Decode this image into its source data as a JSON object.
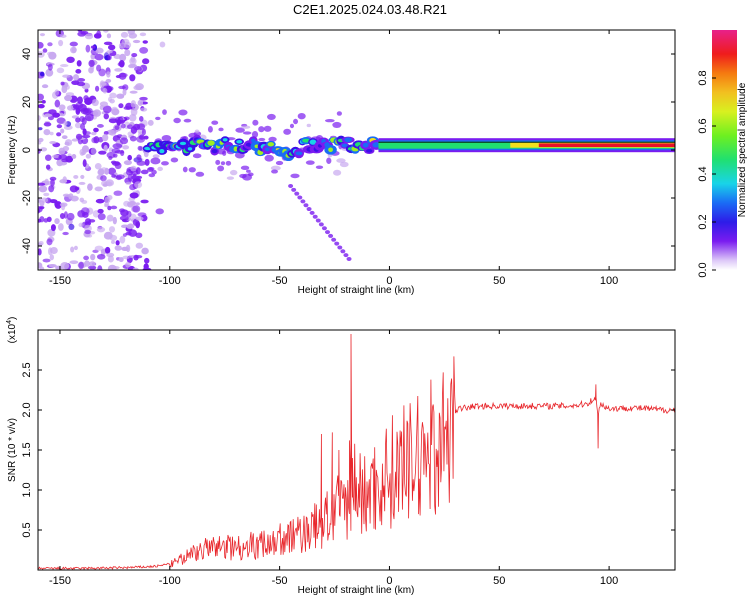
{
  "title": "C2E1.2025.024.03.48.R21",
  "colors": {
    "snr_line": "#e8262b",
    "ridge_core": "#e8102a",
    "colormap": [
      "#ffffff",
      "#c8a8f0",
      "#7a1cf0",
      "#3a10e8",
      "#1a6cf5",
      "#19d4e8",
      "#20e070",
      "#9ef020",
      "#f2e020",
      "#f58a10",
      "#ef1c1c",
      "#e8208a"
    ]
  },
  "chart_data": [
    {
      "type": "heatmap",
      "xlabel": "Height of straight line (km)",
      "ylabel": "Frequency (Hz)",
      "xlim": [
        -160,
        130
      ],
      "ylim": [
        -50,
        50
      ],
      "xticks": [
        -150,
        -100,
        -50,
        0,
        50,
        100
      ],
      "yticks": [
        -40,
        -20,
        0,
        20,
        40
      ],
      "colorbar": {
        "label": "Normalized spectral amplitude",
        "range": [
          0,
          1
        ],
        "ticks": [
          "0.0",
          "0.2",
          "0.4",
          "0.6",
          "0.8"
        ]
      },
      "features": {
        "noise_region_x": [
          -160,
          -110
        ],
        "ridge_frequency_hz": 2,
        "ridge_start_x": -110,
        "strong_ridge_from_x": -5
      },
      "grid": false
    },
    {
      "type": "line",
      "xlabel": "Height of straight line (km)",
      "ylabel": "SNR (10 * v/v)",
      "y_multiplier_label": "(x10",
      "y_multiplier_exp": "4",
      "y_multiplier_close": ")",
      "xlim": [
        -160,
        130
      ],
      "ylim": [
        0,
        3
      ],
      "xticks": [
        -150,
        -100,
        -50,
        0,
        50,
        100
      ],
      "yticks": [
        "0.5",
        "1.0",
        "1.5",
        "2.0",
        "2.5"
      ],
      "series": [
        {
          "x": [
            -160,
            -140,
            -120,
            -110,
            -105,
            -100,
            -95,
            -90,
            -85,
            -80,
            -75,
            -70,
            -65,
            -60,
            -55,
            -50,
            -45,
            -40,
            -35,
            -30,
            -27,
            -25,
            -22,
            -20,
            -18,
            -16,
            -15,
            -12,
            -10,
            -8,
            -5,
            -2,
            0,
            3,
            5,
            8,
            10,
            13,
            15,
            18,
            20,
            22,
            25,
            28,
            30,
            35,
            40,
            45,
            50,
            55,
            60,
            65,
            70,
            75,
            80,
            85,
            90,
            92,
            94,
            95,
            96,
            98,
            100,
            105,
            110,
            115,
            120,
            125,
            130
          ],
          "y": [
            0.02,
            0.02,
            0.03,
            0.04,
            0.05,
            0.08,
            0.15,
            0.25,
            0.3,
            0.32,
            0.35,
            0.33,
            0.38,
            0.35,
            0.42,
            0.45,
            0.48,
            0.55,
            0.6,
            0.72,
            0.8,
            0.85,
            0.9,
            1.0,
            1.1,
            1.3,
            1.2,
            1.05,
            1.15,
            1.2,
            1.25,
            1.35,
            1.45,
            1.45,
            1.5,
            1.55,
            1.6,
            1.62,
            1.72,
            1.75,
            1.82,
            1.88,
            1.92,
            1.96,
            2.0,
            2.03,
            2.05,
            2.05,
            2.05,
            2.05,
            2.05,
            2.05,
            2.05,
            2.05,
            2.05,
            2.06,
            2.08,
            2.12,
            2.15,
            1.9,
            2.1,
            2.04,
            2.02,
            2.02,
            2.03,
            2.02,
            2.01,
            2.0,
            2.0
          ]
        }
      ],
      "spikes": [
        {
          "x": -17.5,
          "y": 2.95
        },
        {
          "x": -18.2,
          "y": 1.62
        },
        {
          "x": -16.8,
          "y": 1.4
        },
        {
          "x": -31,
          "y": 1.7
        },
        {
          "x": -26,
          "y": 1.72
        },
        {
          "x": -23,
          "y": 1.5
        },
        {
          "x": 95,
          "y": 1.52
        },
        {
          "x": 94,
          "y": 2.32
        }
      ],
      "grid": false
    }
  ]
}
